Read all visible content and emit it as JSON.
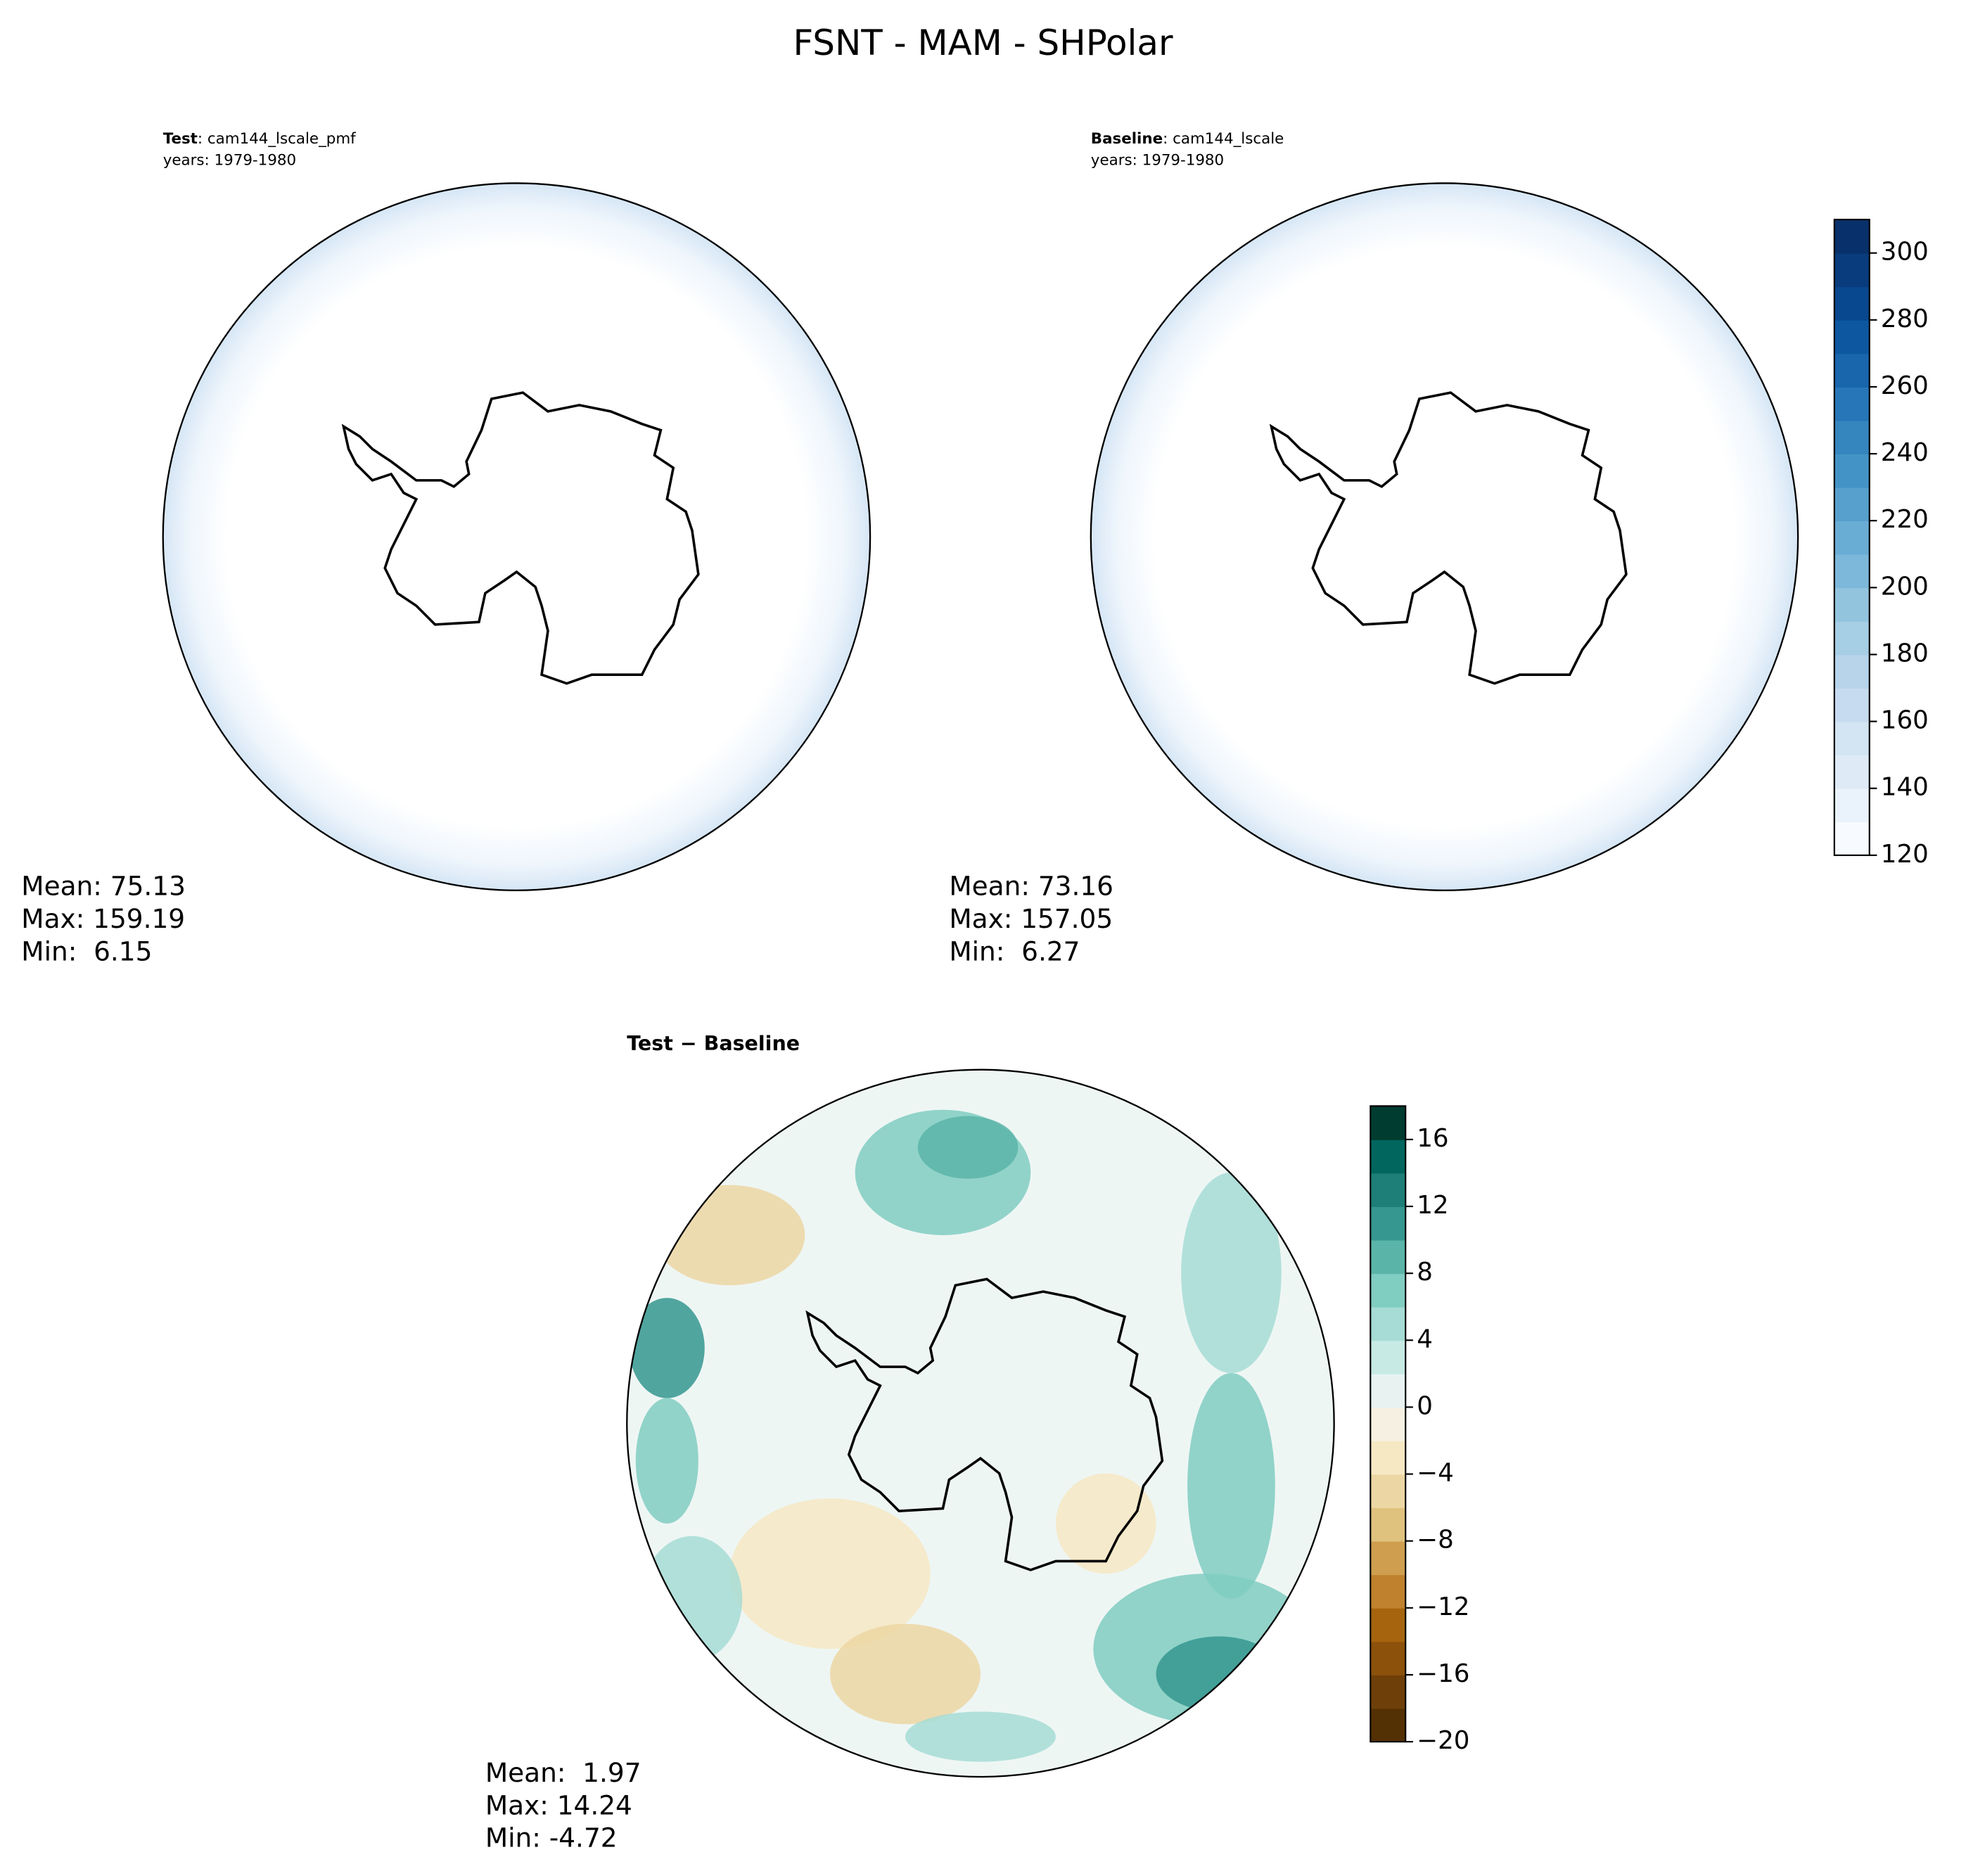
{
  "title": "FSNT - MAM - SHPolar",
  "chart_data": [
    {
      "type": "contour-map",
      "label": "Test",
      "case": ": cam144_lscale_pmf",
      "subtitle": "years: 1979-1980",
      "stats": [
        "Mean: 75.13",
        "Max: 159.19",
        "Min:  6.15"
      ]
    },
    {
      "type": "contour-map",
      "label": "Baseline",
      "case": ": cam144_lscale",
      "subtitle": "years: 1979-1980",
      "stats": [
        "Mean: 73.16",
        "Max: 157.05",
        "Min:  6.27"
      ],
      "colorbar": {
        "lim": [
          120,
          310
        ],
        "ticks": [
          120,
          140,
          160,
          180,
          200,
          220,
          240,
          260,
          280,
          300
        ],
        "colors": [
          "#f7fbff",
          "#eaf3fb",
          "#deebf7",
          "#d3e4f3",
          "#c6dbef",
          "#b7d4ea",
          "#a6cee4",
          "#92c4de",
          "#7db8da",
          "#69add5",
          "#57a0ce",
          "#4493c7",
          "#3585bf",
          "#2676b8",
          "#1966ad",
          "#0d57a1",
          "#08488e",
          "#083c7d",
          "#08306b"
        ]
      }
    },
    {
      "type": "contour-map",
      "label": "Test − Baseline",
      "stats": [
        "Mean:  1.97",
        "Max: 14.24",
        "Min: -4.72"
      ],
      "colorbar": {
        "lim": [
          -20,
          18
        ],
        "ticks": [
          {
            "value": -20,
            "label": "−20"
          },
          {
            "value": -16,
            "label": "−16"
          },
          {
            "value": -12,
            "label": "−12"
          },
          {
            "value": -8,
            "label": "−8"
          },
          {
            "value": -4,
            "label": "−4"
          },
          0,
          4,
          8,
          12,
          16
        ],
        "colors": [
          "#543005",
          "#6e3f08",
          "#8c510a",
          "#a6640f",
          "#bf812d",
          "#cf9f4f",
          "#dfc27d",
          "#ecd6a3",
          "#f6e8c3",
          "#f5f0e2",
          "#e8f3f1",
          "#c7eae5",
          "#a6dcd5",
          "#80cdc1",
          "#5ab4a8",
          "#35978f",
          "#1d7f77",
          "#01665e",
          "#003c30"
        ]
      }
    }
  ]
}
